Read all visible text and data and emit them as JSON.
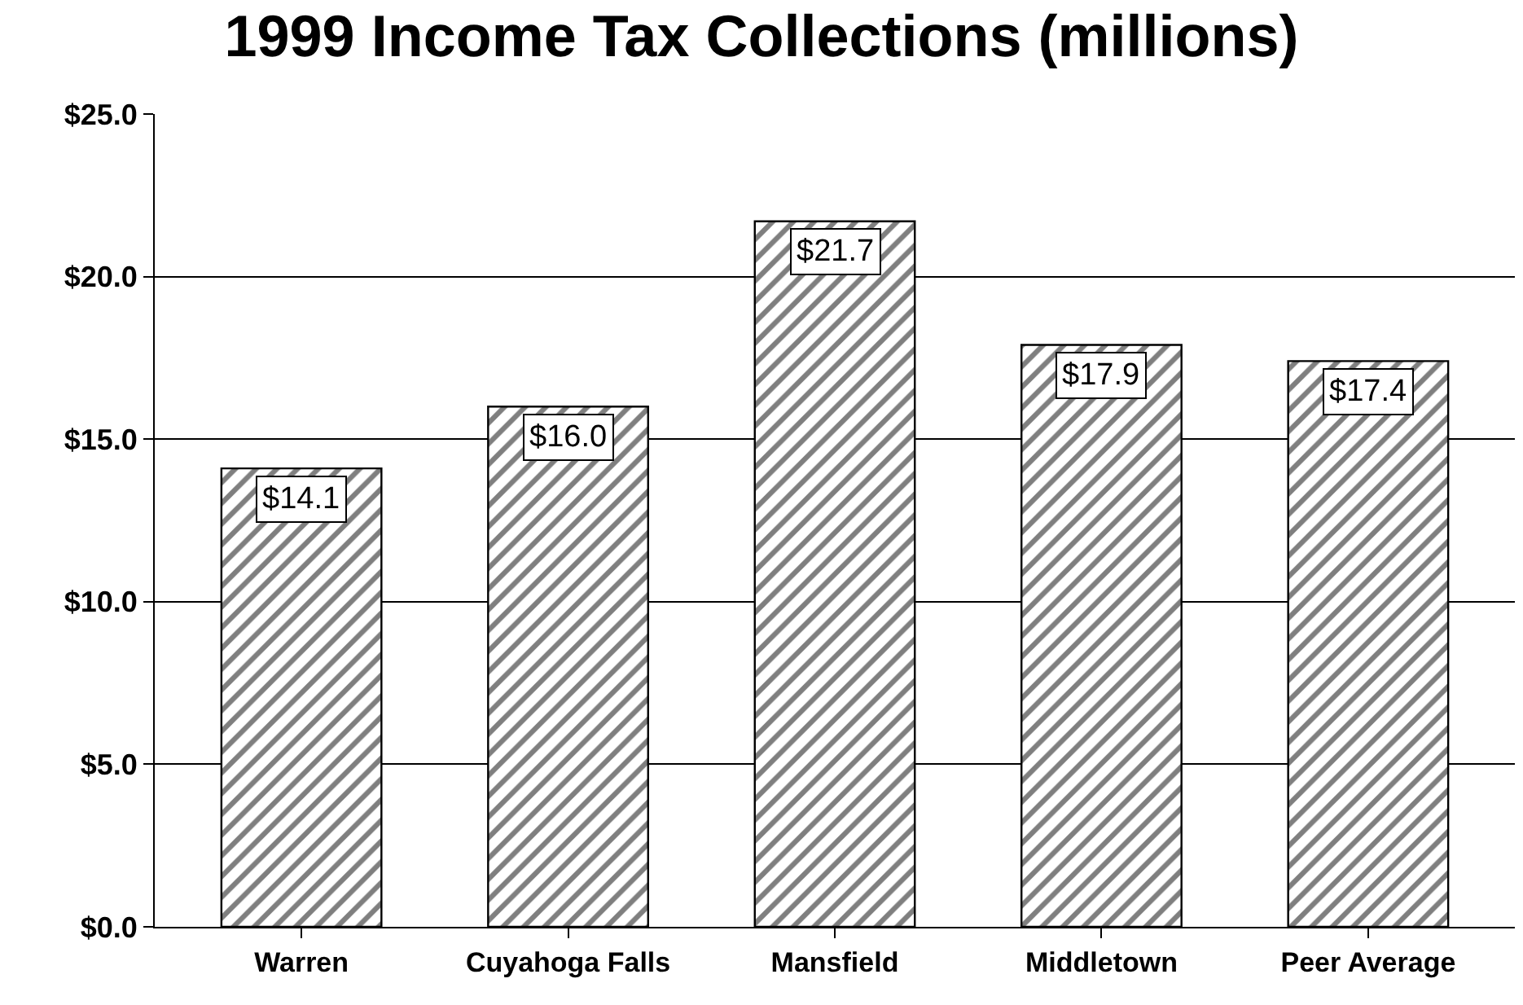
{
  "chart_data": {
    "type": "bar",
    "title": "1999 Income Tax Collections (millions)",
    "categories": [
      "Warren",
      "Cuyahoga Falls",
      "Mansfield",
      "Middletown",
      "Peer Average"
    ],
    "values": [
      14.1,
      16.0,
      21.7,
      17.9,
      17.4
    ],
    "value_labels": [
      "$14.1",
      "$16.0",
      "$21.7",
      "$17.9",
      "$17.4"
    ],
    "color": "#000000",
    "ylim": [
      0,
      25
    ],
    "yticks": [
      {
        "value": 0,
        "label": "$0.0"
      },
      {
        "value": 5,
        "label": "$5.0"
      },
      {
        "value": 10,
        "label": "$10.0"
      },
      {
        "value": 15,
        "label": "$15.0"
      },
      {
        "value": 20,
        "label": "$20.0"
      },
      {
        "value": 25,
        "label": "$25.0"
      }
    ],
    "grid": "y"
  }
}
